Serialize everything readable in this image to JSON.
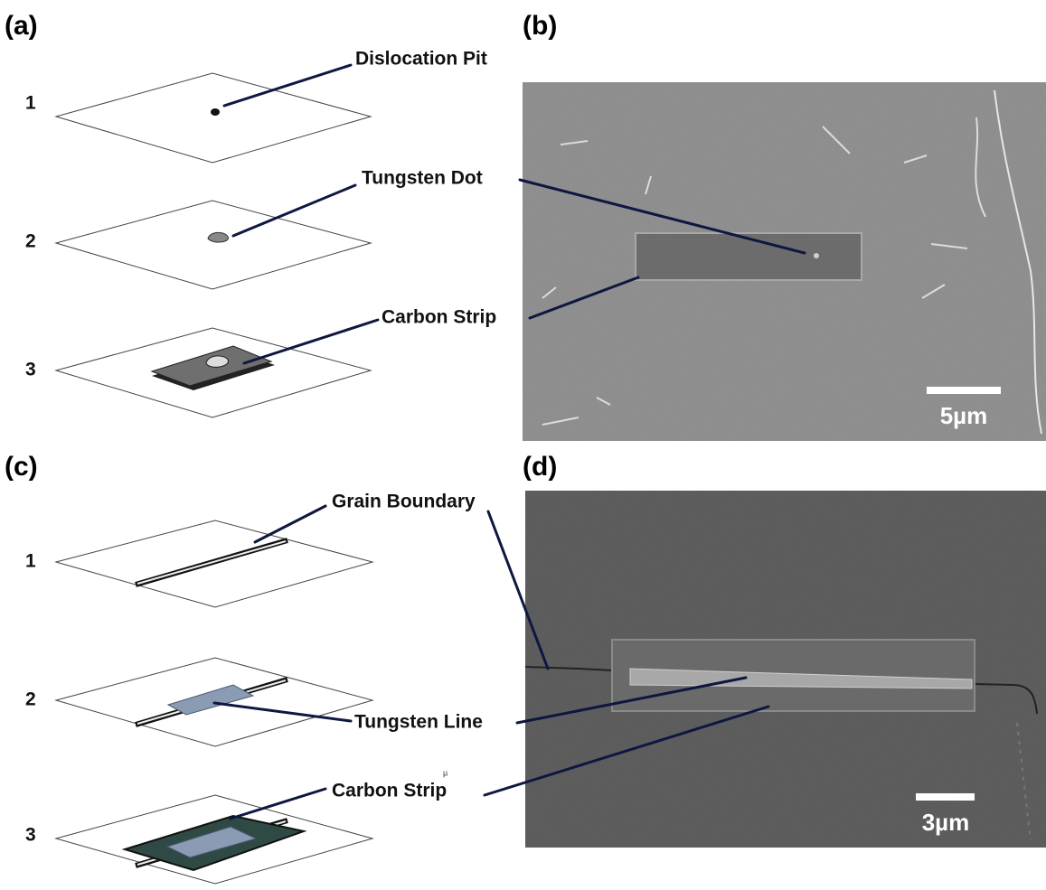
{
  "panel_labels": [
    "(a)",
    "(b)",
    "(c)",
    "(d)"
  ],
  "panel_a": {
    "steps": [
      "1",
      "2",
      "3"
    ],
    "callouts": [
      "Dislocation Pit",
      "Tungsten Dot",
      "Carbon Strip"
    ]
  },
  "panel_b": {
    "scale_bar": "5µm"
  },
  "panel_c": {
    "steps": [
      "1",
      "2",
      "3"
    ],
    "callouts": [
      "Grain Boundary",
      "Tungsten Line",
      "Carbon Strip"
    ],
    "stray_mark": "µ"
  },
  "panel_d": {
    "scale_bar": "3µm"
  }
}
